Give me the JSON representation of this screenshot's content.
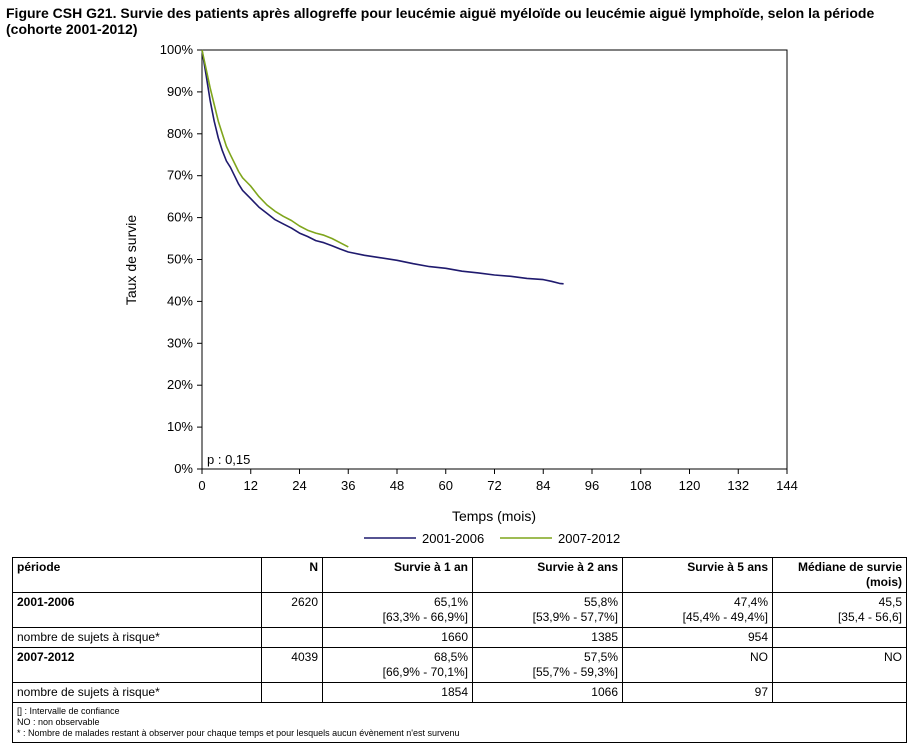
{
  "title": "Figure CSH G21. Survie des patients après allogreffe pour leucémie aiguë myéloïde ou leucémie aiguë lymphoïde, selon la période (cohorte 2001-2012)",
  "chart_data": {
    "type": "line",
    "xlabel": "Temps (mois)",
    "ylabel": "Taux de survie",
    "xlim": [
      0,
      144
    ],
    "ylim": [
      0,
      100
    ],
    "x_ticks": [
      0,
      12,
      24,
      36,
      48,
      60,
      72,
      84,
      96,
      108,
      120,
      132,
      144
    ],
    "y_ticks": [
      0,
      10,
      20,
      30,
      40,
      50,
      60,
      70,
      80,
      90,
      100
    ],
    "y_tick_labels": [
      "0%",
      "10%",
      "20%",
      "30%",
      "40%",
      "50%",
      "60%",
      "70%",
      "80%",
      "90%",
      "100%"
    ],
    "annotation": "p : 0,15",
    "grid": false,
    "legend_position": "bottom",
    "series": [
      {
        "name": "2001-2006",
        "color": "#1f1a6e",
        "points": [
          [
            0,
            100
          ],
          [
            1,
            94
          ],
          [
            2,
            88
          ],
          [
            3,
            83
          ],
          [
            4,
            79
          ],
          [
            5,
            76
          ],
          [
            6,
            73.5
          ],
          [
            7,
            72
          ],
          [
            8,
            70
          ],
          [
            9,
            68
          ],
          [
            10,
            66.5
          ],
          [
            11,
            65.5
          ],
          [
            12,
            64.5
          ],
          [
            14,
            62.5
          ],
          [
            16,
            61
          ],
          [
            18,
            59.5
          ],
          [
            20,
            58.5
          ],
          [
            22,
            57.5
          ],
          [
            24,
            56.3
          ],
          [
            26,
            55.5
          ],
          [
            28,
            54.5
          ],
          [
            30,
            54
          ],
          [
            32,
            53.3
          ],
          [
            34,
            52.5
          ],
          [
            36,
            51.8
          ],
          [
            40,
            51
          ],
          [
            44,
            50.4
          ],
          [
            48,
            49.8
          ],
          [
            52,
            49
          ],
          [
            56,
            48.3
          ],
          [
            60,
            47.9
          ],
          [
            64,
            47.2
          ],
          [
            68,
            46.8
          ],
          [
            72,
            46.3
          ],
          [
            76,
            46
          ],
          [
            80,
            45.5
          ],
          [
            84,
            45.2
          ],
          [
            86,
            44.8
          ],
          [
            88,
            44.3
          ],
          [
            89,
            44.2
          ]
        ]
      },
      {
        "name": "2007-2012",
        "color": "#7fa51c",
        "points": [
          [
            0,
            100
          ],
          [
            1,
            95.5
          ],
          [
            2,
            91
          ],
          [
            3,
            87
          ],
          [
            4,
            83
          ],
          [
            5,
            80
          ],
          [
            6,
            77
          ],
          [
            7,
            75
          ],
          [
            8,
            73
          ],
          [
            9,
            71
          ],
          [
            10,
            69.5
          ],
          [
            11,
            68.5
          ],
          [
            12,
            67.5
          ],
          [
            14,
            65
          ],
          [
            16,
            63
          ],
          [
            18,
            61.5
          ],
          [
            20,
            60.3
          ],
          [
            22,
            59.3
          ],
          [
            24,
            58
          ],
          [
            26,
            57
          ],
          [
            28,
            56.3
          ],
          [
            30,
            55.8
          ],
          [
            32,
            55
          ],
          [
            34,
            54
          ],
          [
            36,
            53
          ]
        ]
      }
    ]
  },
  "table": {
    "headers": [
      "période",
      "N",
      "Survie à 1 an",
      "Survie à 2 ans",
      "Survie à 5 ans",
      "Médiane de survie (mois)"
    ],
    "row1": {
      "label": "2001-2006",
      "n": "2620",
      "s1": "65,1%",
      "s1_ci": "[63,3% - 66,9%]",
      "s2": "55,8%",
      "s2_ci": "[53,9% - 57,7%]",
      "s5": "47,4%",
      "s5_ci": "[45,4% - 49,4%]",
      "med": "45,5",
      "med_ci": "[35,4 - 56,6]"
    },
    "risk1": {
      "label": "nombre de sujets à risque*",
      "r1": "1660",
      "r2": "1385",
      "r5": "954"
    },
    "row2": {
      "label": "2007-2012",
      "n": "4039",
      "s1": "68,5%",
      "s1_ci": "[66,9% - 70,1%]",
      "s2": "57,5%",
      "s2_ci": "[55,7% - 59,3%]",
      "s5": "NO",
      "med": "NO"
    },
    "risk2": {
      "label": "nombre de sujets à risque*",
      "r1": "1854",
      "r2": "1066",
      "r5": "97"
    },
    "notes": [
      "[] : Intervalle de confiance",
      "NO : non observable",
      "* : Nombre de malades restant à observer pour chaque temps et pour lesquels aucun évènement n'est survenu"
    ]
  }
}
